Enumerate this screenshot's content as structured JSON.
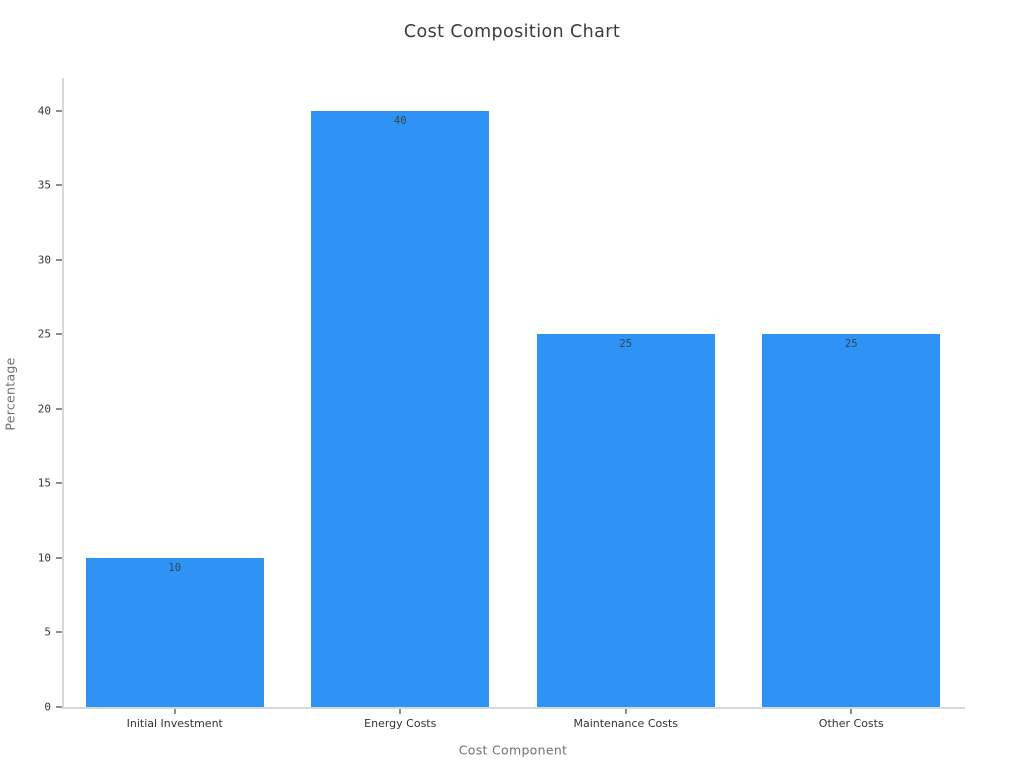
{
  "chart_data": {
    "type": "bar",
    "title": "Cost Composition Chart",
    "xlabel": "Cost Component",
    "ylabel": "Percentage",
    "categories": [
      "Initial Investment",
      "Energy Costs",
      "Maintenance Costs",
      "Other Costs"
    ],
    "values": [
      10,
      40,
      25,
      25
    ],
    "bar_labels": [
      "10",
      "40",
      "25",
      "25"
    ],
    "yticks": [
      0,
      5,
      10,
      15,
      20,
      25,
      30,
      35,
      40
    ],
    "ylim": [
      0,
      42.2
    ],
    "grid": false,
    "legend": false,
    "bar_label_position": "inside-top",
    "colors": {
      "bar": "#2e93f5",
      "bar_value_label": "#36454f",
      "tick_label": "#383838",
      "category_label": "#333333",
      "axis_title": "#707070",
      "title": "#3c3c3c",
      "spine": "#d7d7d7",
      "tick_mark": "#8c8c8c",
      "background": "#ffffff"
    }
  }
}
